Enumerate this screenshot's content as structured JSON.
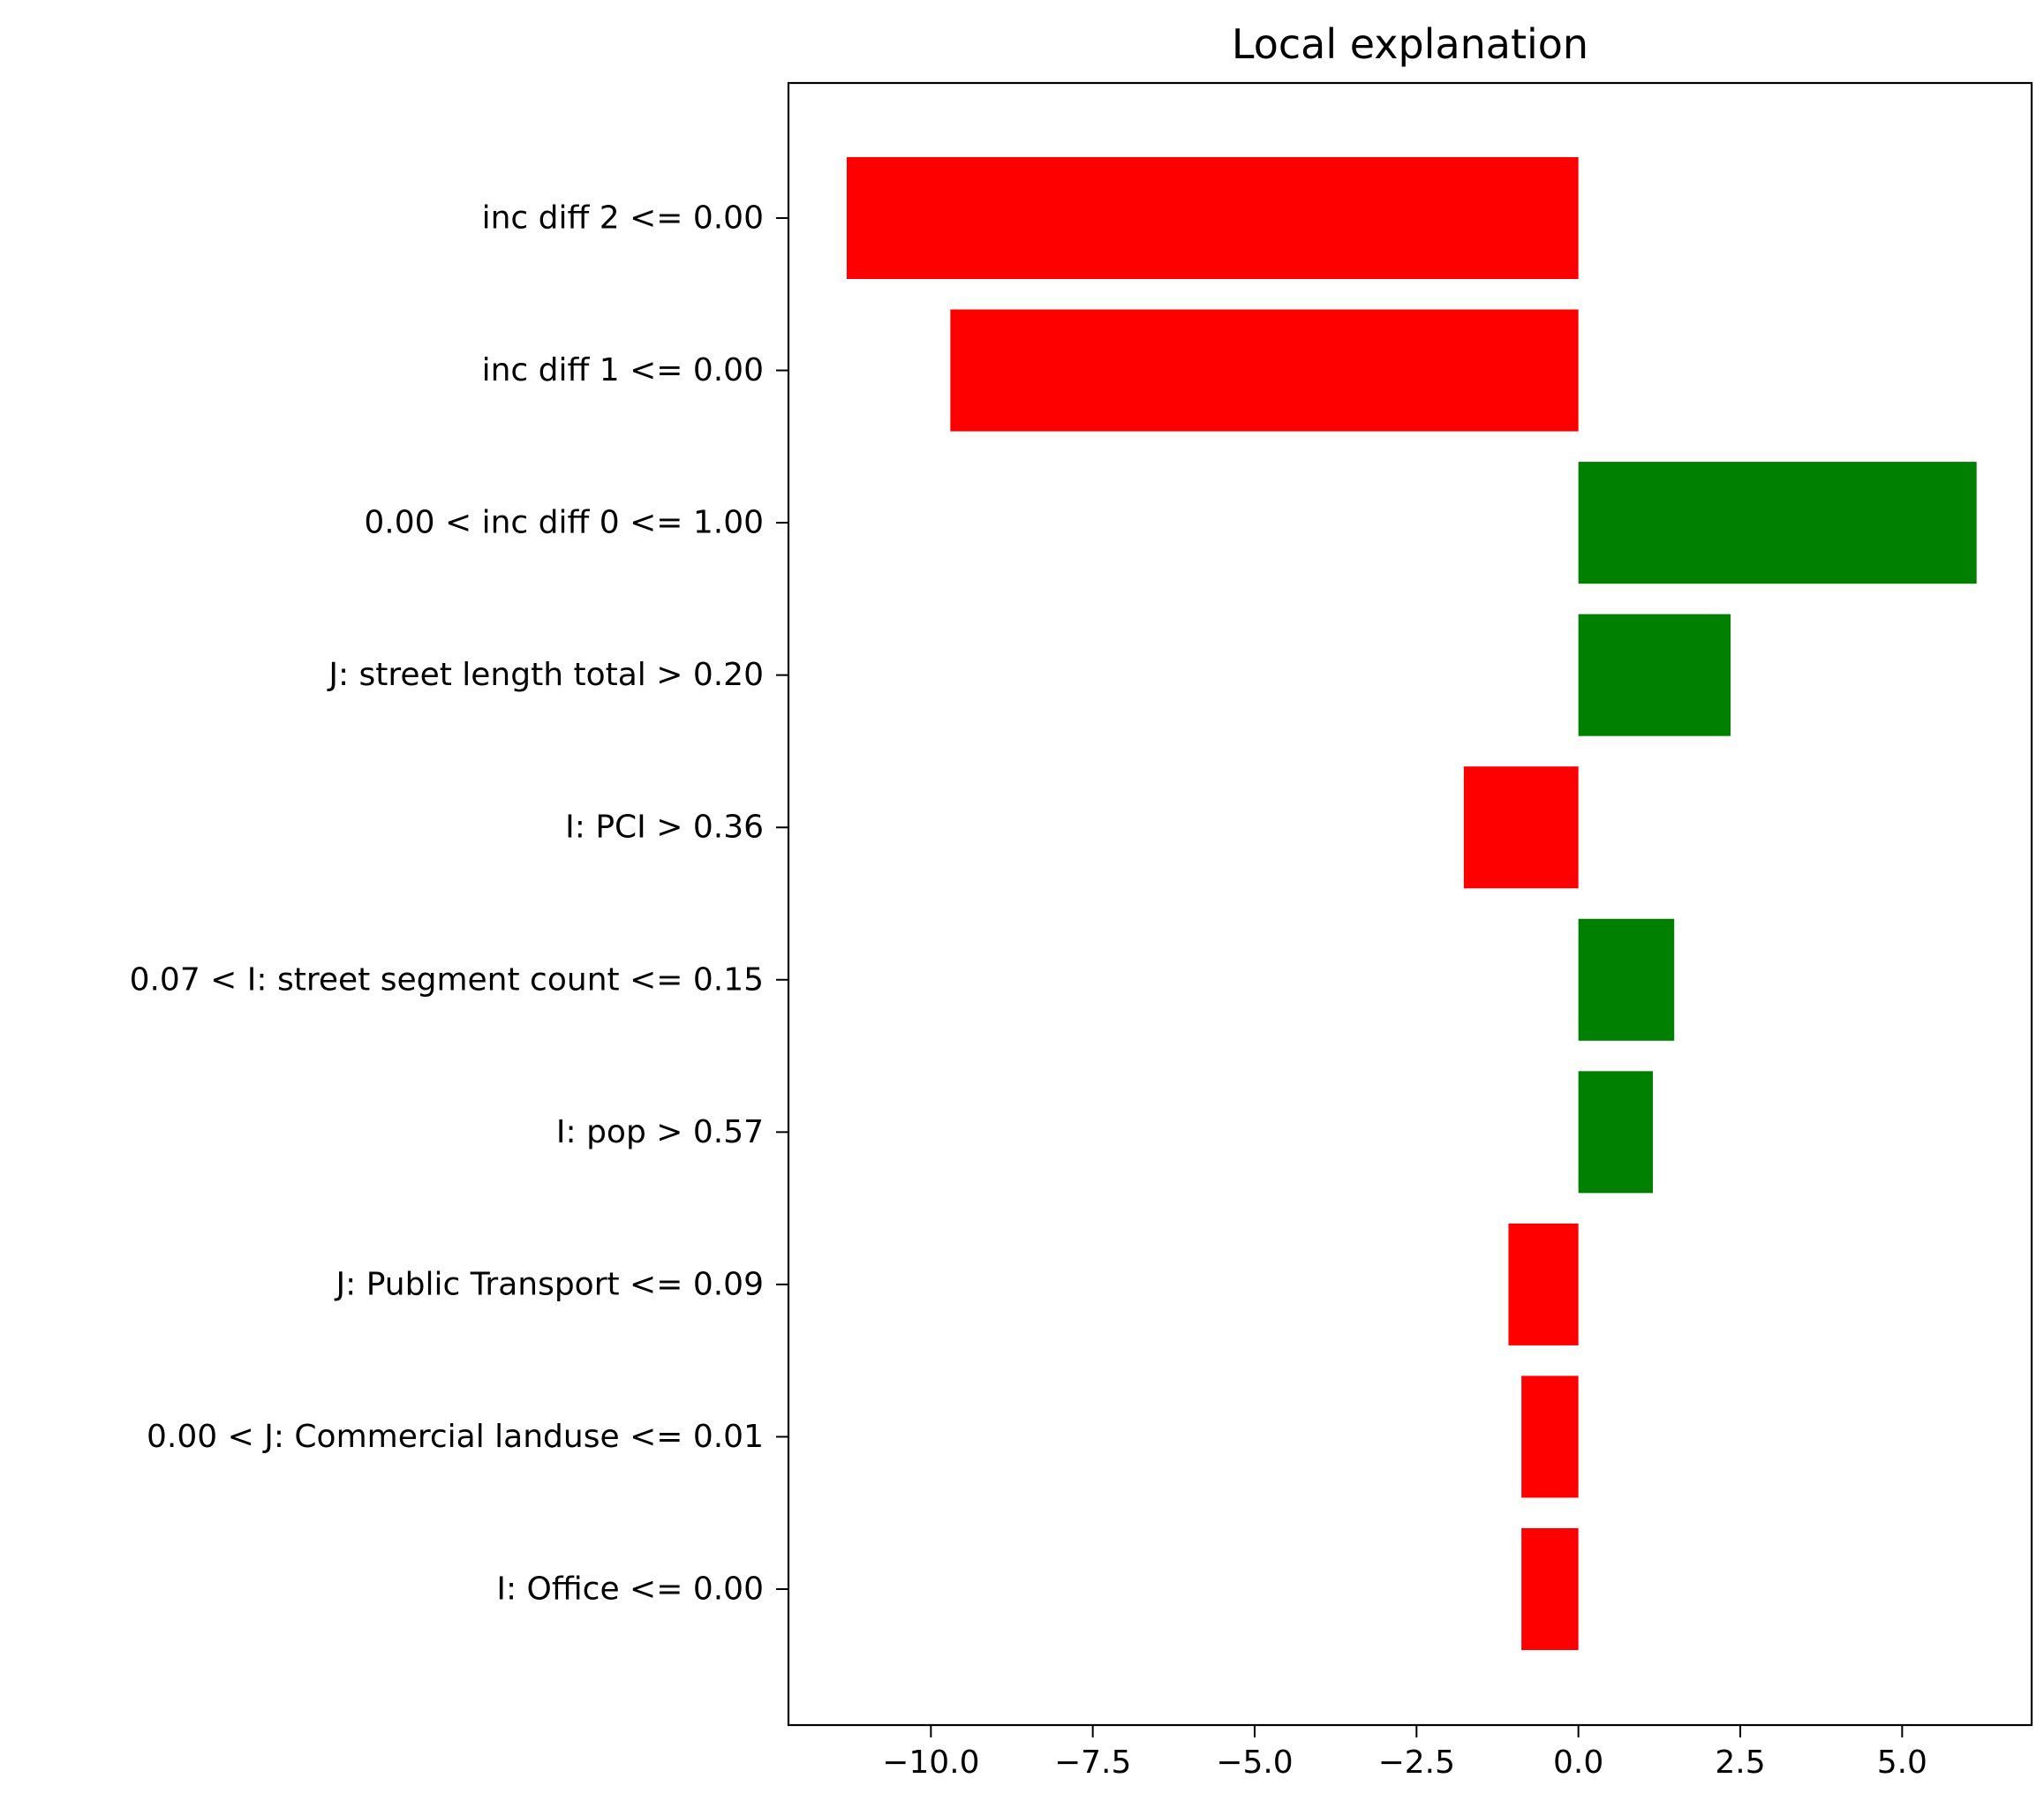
{
  "chart_data": {
    "type": "bar",
    "orientation": "horizontal",
    "title": "Local explanation",
    "xlabel": "",
    "ylabel": "",
    "xlim": [
      -12.2,
      7.0
    ],
    "xticks": [
      -10.0,
      -7.5,
      -5.0,
      -2.5,
      0.0,
      2.5,
      5.0
    ],
    "xtick_labels": [
      "−10.0",
      "−7.5",
      "−5.0",
      "−2.5",
      "0.0",
      "2.5",
      "5.0"
    ],
    "grid": false,
    "legend": "none",
    "categories": [
      "inc diff 2 <= 0.00",
      "inc diff 1 <= 0.00",
      "0.00 < inc diff 0 <= 1.00",
      "J: street length total > 0.20",
      "I: PCI > 0.36",
      "0.07 < I: street segment count <= 0.15",
      "I: pop > 0.57",
      "J: Public Transport <= 0.09",
      "0.00 < J: Commercial landuse <= 0.01",
      "I: Office <= 0.00"
    ],
    "values": [
      -11.3,
      -9.7,
      6.15,
      2.35,
      -1.77,
      1.48,
      1.15,
      -1.08,
      -0.88,
      -0.88
    ],
    "colors": {
      "positive": "#008000",
      "negative": "#ff0000"
    }
  }
}
